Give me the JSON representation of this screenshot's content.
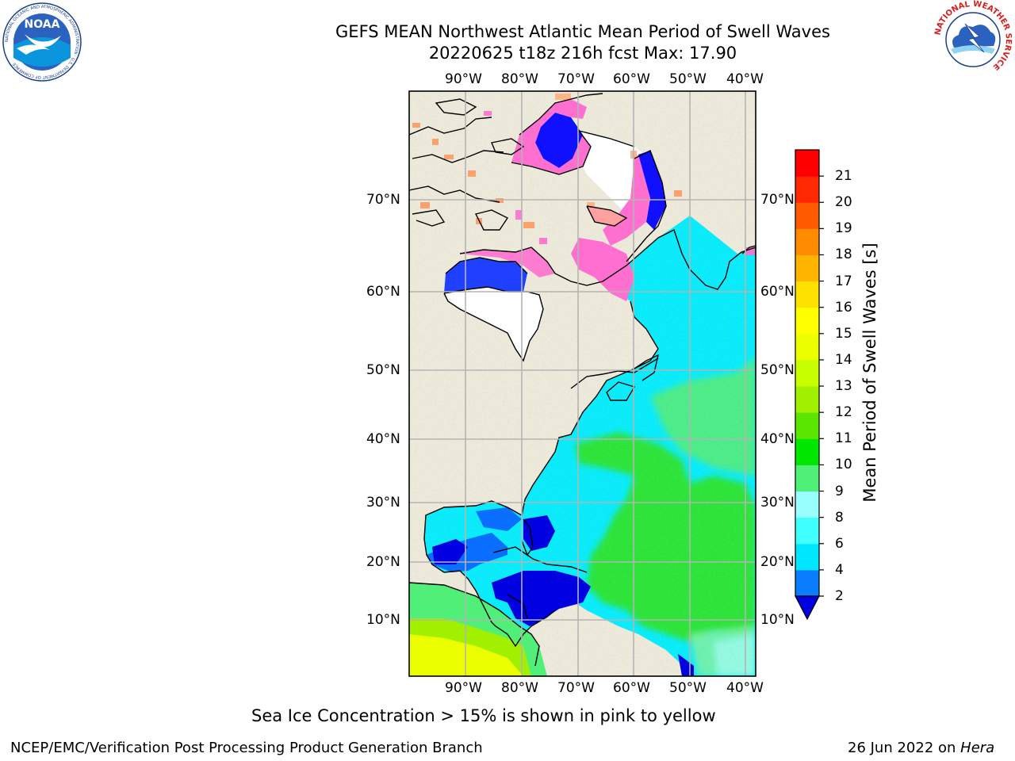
{
  "header": {
    "title_line1": "GEFS MEAN Northwest Atlantic Mean Period of Swell Waves",
    "title_line2": "20220625 t18z 216h fcst   Max: 17.90"
  },
  "logos": {
    "left": {
      "name": "NOAA",
      "ring_text": "NATIONAL OCEANIC AND ATMOSPHERIC ADMINISTRATION · U.S. DEPARTMENT OF COMMERCE"
    },
    "right": {
      "ring_text": "NATIONAL WEATHER SERVICE"
    }
  },
  "map": {
    "lon_labels": [
      "90°W",
      "80°W",
      "70°W",
      "60°W",
      "50°W",
      "40°W"
    ],
    "lat_labels": [
      "70°N",
      "60°N",
      "50°N",
      "40°N",
      "30°N",
      "20°N",
      "10°N"
    ],
    "colors": {
      "land": "#efecdc",
      "ice": "#ffffff",
      "grid": "#b4b4b4"
    }
  },
  "colorbar": {
    "label": "Mean Period of Swell Waves [s]",
    "ticks": [
      "2",
      "4",
      "6",
      "8",
      "9",
      "10",
      "11",
      "12",
      "13",
      "14",
      "15",
      "16",
      "17",
      "18",
      "19",
      "20",
      "21"
    ],
    "under_color": "#0000e0",
    "colors": [
      "#0a7dff",
      "#00e6ff",
      "#40ffff",
      "#99ffff",
      "#50f078",
      "#00e600",
      "#5ae600",
      "#a0f000",
      "#c8ff00",
      "#ebff00",
      "#ffff00",
      "#ffe100",
      "#ffb400",
      "#ff8c00",
      "#ff5a00",
      "#ff2800",
      "#ff0000"
    ]
  },
  "notes": {
    "ice_note": "Sea Ice Concentration > 15% is shown in pink to yellow"
  },
  "footer": {
    "left": "NCEP/EMC/Verification Post Processing Product Generation Branch",
    "date": "26 Jun 2022 on ",
    "host": "Hera"
  }
}
